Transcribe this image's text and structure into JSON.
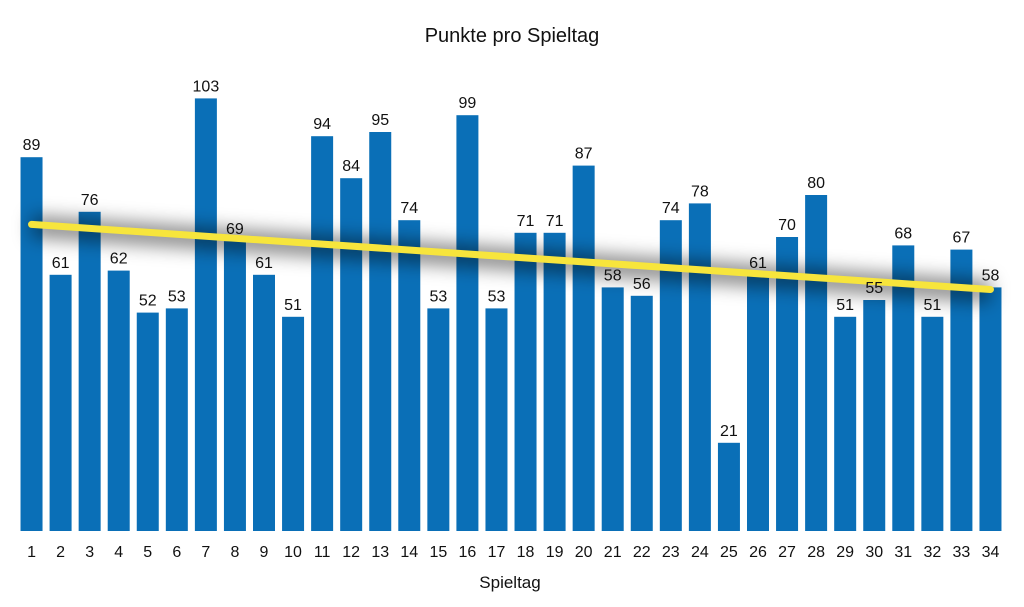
{
  "chart_data": {
    "type": "bar",
    "title": "Punkte pro Spieltag",
    "xlabel": "Spieltag",
    "ylabel": "",
    "categories": [
      "1",
      "2",
      "3",
      "4",
      "5",
      "6",
      "7",
      "8",
      "9",
      "10",
      "11",
      "12",
      "13",
      "14",
      "15",
      "16",
      "17",
      "18",
      "19",
      "20",
      "21",
      "22",
      "23",
      "24",
      "25",
      "26",
      "27",
      "28",
      "29",
      "30",
      "31",
      "32",
      "33",
      "34"
    ],
    "values": [
      89,
      61,
      76,
      62,
      52,
      53,
      103,
      69,
      61,
      51,
      94,
      84,
      95,
      74,
      53,
      99,
      53,
      71,
      71,
      87,
      58,
      56,
      74,
      78,
      21,
      61,
      70,
      80,
      51,
      55,
      68,
      51,
      67,
      58
    ],
    "ylim": [
      0,
      110
    ],
    "grid": false,
    "legend": "none",
    "trendline": {
      "start": 73,
      "end": 57.5
    },
    "colors": {
      "bar": "#0a6fb7",
      "trend": "#f7e53c",
      "trend_shadow": "#000000",
      "text": "#111111"
    }
  }
}
